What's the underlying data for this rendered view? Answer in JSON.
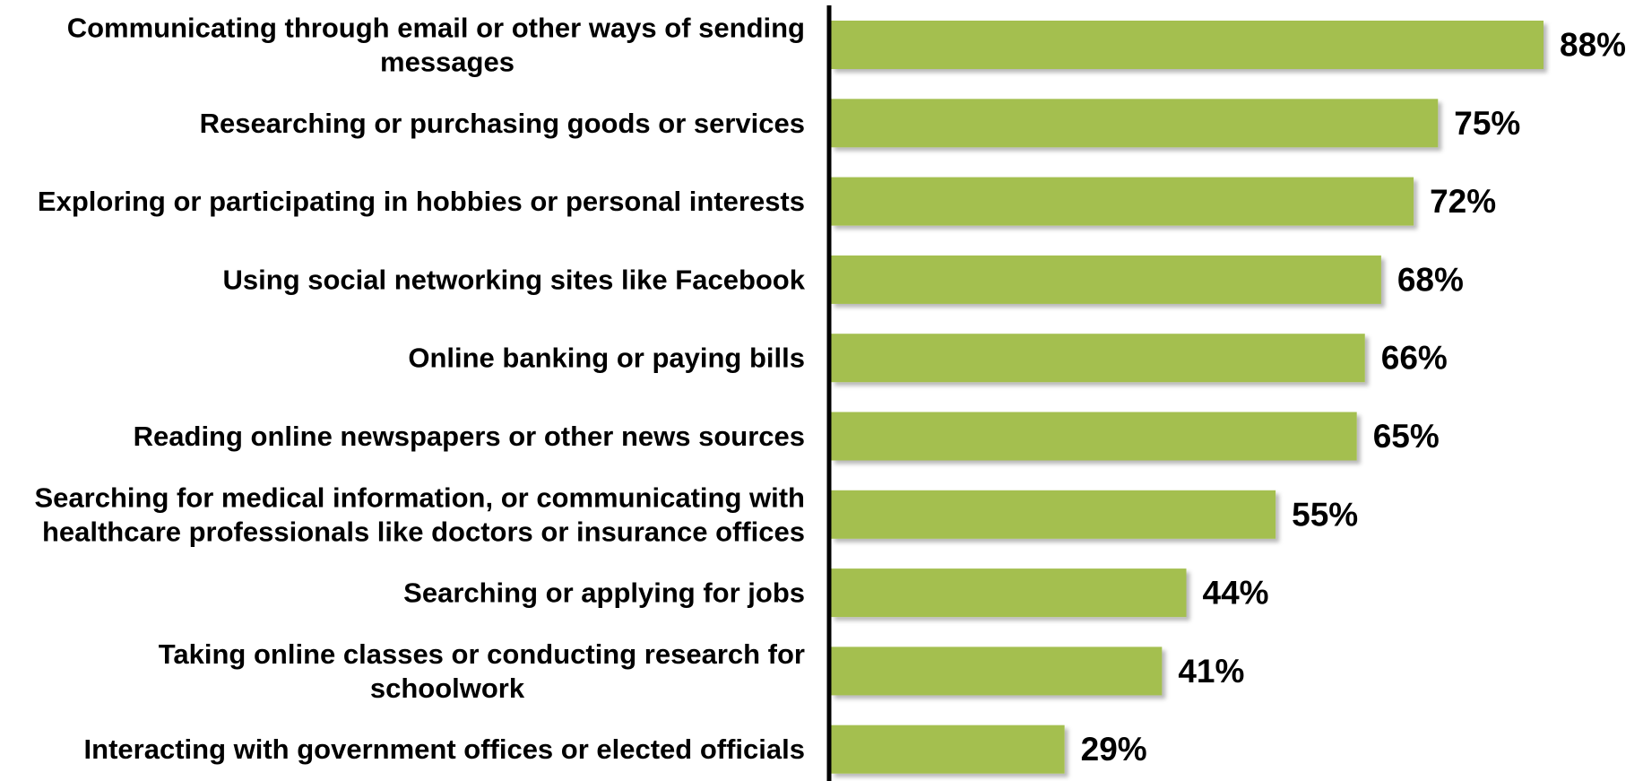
{
  "chart_data": {
    "type": "bar",
    "orientation": "horizontal",
    "categories": [
      "Communicating through email or other ways of sending messages",
      "Researching or purchasing goods or services",
      "Exploring or participating in hobbies or personal interests",
      "Using social networking sites like Facebook",
      "Online banking or paying bills",
      "Reading online newspapers or other news sources",
      "Searching for medical information, or communicating with healthcare professionals like doctors or insurance offices",
      "Searching or applying for jobs",
      "Taking online classes or conducting research for schoolwork",
      "Interacting with government offices or elected officials"
    ],
    "category_lines": [
      [
        "Communicating through email or other ways of sending",
        "messages"
      ],
      [
        "Researching or purchasing goods or services"
      ],
      [
        "Exploring or participating in hobbies or personal interests"
      ],
      [
        "Using social networking sites like Facebook"
      ],
      [
        "Online banking or paying bills"
      ],
      [
        "Reading online newspapers or other news sources"
      ],
      [
        "Searching for medical information, or communicating with",
        "healthcare professionals like doctors or insurance offices"
      ],
      [
        "Searching or applying for jobs"
      ],
      [
        "Taking online classes or conducting research for",
        "schoolwork"
      ],
      [
        "Interacting with government offices or elected officials"
      ]
    ],
    "values": [
      88,
      75,
      72,
      68,
      66,
      65,
      55,
      44,
      41,
      29
    ],
    "value_labels": [
      "88%",
      "75%",
      "72%",
      "68%",
      "66%",
      "65%",
      "55%",
      "44%",
      "41%",
      "29%"
    ],
    "xlim": [
      0,
      100
    ],
    "unit": "%",
    "title": "",
    "xlabel": "",
    "ylabel": "",
    "grid": false,
    "legend": "none",
    "bar_color": "#a4bf4f",
    "axis_color": "#000000"
  }
}
